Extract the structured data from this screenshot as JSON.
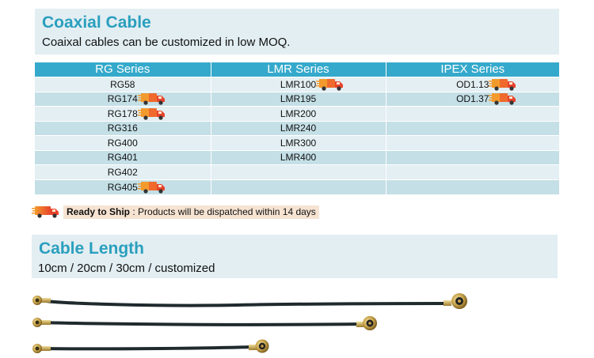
{
  "section1": {
    "title": "Coaxial Cable",
    "description": "Coaixal cables can be customized in low MOQ."
  },
  "table": {
    "headers": [
      "RG Series",
      "LMR Series",
      "IPEX Series"
    ],
    "rows": [
      {
        "rg": "RG58",
        "rg_ship": false,
        "lmr": "LMR100",
        "lmr_ship": true,
        "ipex": "OD1.13",
        "ipex_ship": true
      },
      {
        "rg": "RG174",
        "rg_ship": true,
        "lmr": "LMR195",
        "lmr_ship": false,
        "ipex": "OD1.37",
        "ipex_ship": true
      },
      {
        "rg": "RG178",
        "rg_ship": true,
        "lmr": "LMR200",
        "lmr_ship": false,
        "ipex": "",
        "ipex_ship": false
      },
      {
        "rg": "RG316",
        "rg_ship": false,
        "lmr": "LMR240",
        "lmr_ship": false,
        "ipex": "",
        "ipex_ship": false
      },
      {
        "rg": "RG400",
        "rg_ship": false,
        "lmr": "LMR300",
        "lmr_ship": false,
        "ipex": "",
        "ipex_ship": false
      },
      {
        "rg": "RG401",
        "rg_ship": false,
        "lmr": "LMR400",
        "lmr_ship": false,
        "ipex": "",
        "ipex_ship": false
      },
      {
        "rg": "RG402",
        "rg_ship": false,
        "lmr": "",
        "lmr_ship": false,
        "ipex": "",
        "ipex_ship": false
      },
      {
        "rg": "RG405",
        "rg_ship": true,
        "lmr": "",
        "lmr_ship": false,
        "ipex": "",
        "ipex_ship": false
      }
    ]
  },
  "legend": {
    "icon": "delivery-truck-icon",
    "label": "Ready to Ship",
    "text": " : Products will be dispatched within 14 days"
  },
  "section2": {
    "title": "Cable Length",
    "description": "10cm / 20cm / 30cm / customized"
  },
  "colors": {
    "title": "#2a9fbe",
    "header": "#35a9cb",
    "row_light": "#e3eff3",
    "row_dark": "#c4dfe6",
    "truck_red": "#e8432c",
    "truck_orange": "#f39a2c"
  }
}
